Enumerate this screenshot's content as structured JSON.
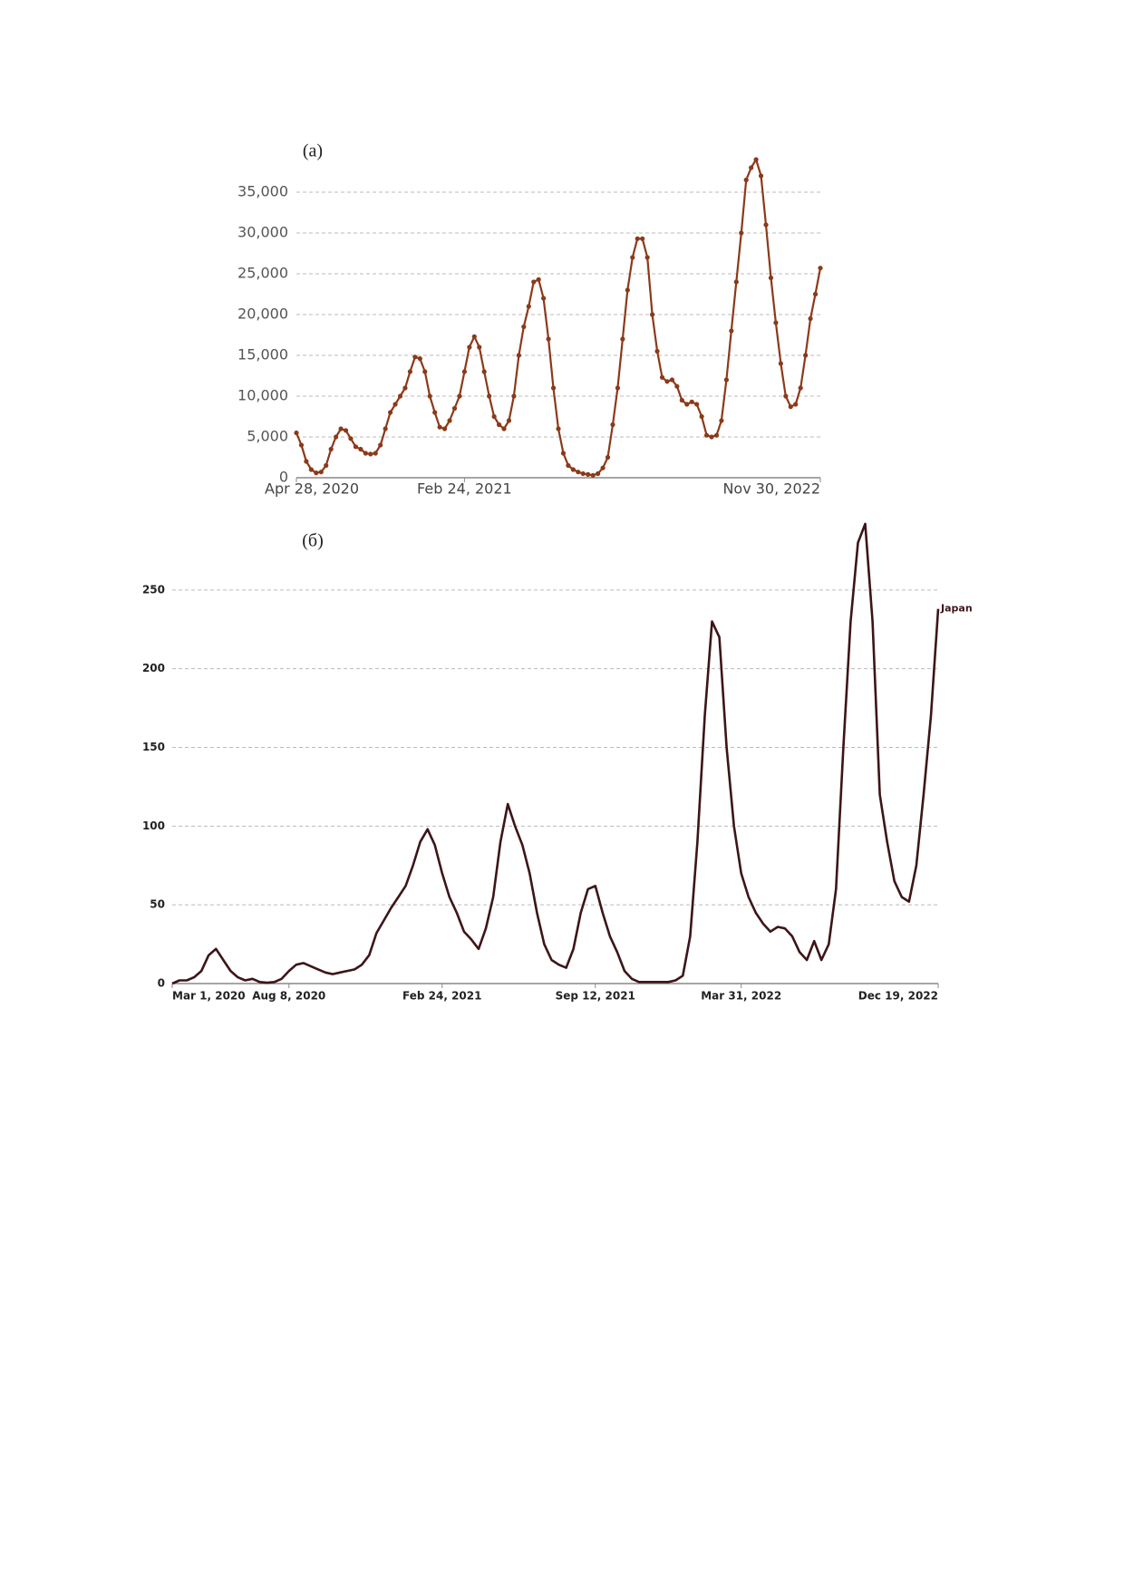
{
  "chart_data": [
    {
      "type": "line",
      "title": "(a)",
      "color": "#8b3a1a",
      "markers": true,
      "grid": true,
      "ylim": [
        0,
        40000
      ],
      "yticks": [
        0,
        {
          "value": 5000,
          "label": "5,000"
        },
        {
          "value": 10000,
          "label": "10,000"
        },
        {
          "value": 15000,
          "label": "15,000"
        },
        {
          "value": 20000,
          "label": "20,000"
        },
        {
          "value": 25000,
          "label": "25,000"
        },
        {
          "value": 30000,
          "label": "30,000"
        },
        {
          "value": 35000,
          "label": "35,000"
        }
      ],
      "categories": [
        "Apr 28, 2020",
        null,
        null,
        null,
        null,
        null,
        null,
        null,
        null,
        null,
        null,
        null,
        null,
        null,
        null,
        null,
        null,
        null,
        null,
        null,
        null,
        null,
        null,
        null,
        null,
        null,
        null,
        null,
        null,
        null,
        null,
        null,
        null,
        null,
        "Feb 24, 2021",
        null,
        null,
        null,
        null,
        null,
        null,
        null,
        null,
        null,
        null,
        null,
        null,
        null,
        null,
        null,
        null,
        null,
        null,
        null,
        null,
        null,
        null,
        null,
        null,
        null,
        null,
        null,
        null,
        null,
        null,
        null,
        null,
        null,
        null,
        null,
        null,
        null,
        null,
        null,
        null,
        null,
        null,
        null,
        null,
        null,
        null,
        null,
        null,
        null,
        null,
        null,
        null,
        null,
        null,
        null,
        null,
        null,
        null,
        null,
        null,
        null,
        null,
        null,
        null,
        null,
        null,
        null,
        null,
        null,
        null,
        null,
        "Nov 30, 2022"
      ],
      "values": [
        5500,
        4000,
        2000,
        1000,
        600,
        700,
        1500,
        3500,
        5000,
        6000,
        5800,
        4800,
        3800,
        3500,
        3000,
        2900,
        3000,
        4000,
        6000,
        8000,
        9000,
        10000,
        11000,
        13000,
        14800,
        14600,
        13000,
        10000,
        8000,
        6200,
        6000,
        7000,
        8500,
        10000,
        13000,
        16000,
        17300,
        16000,
        13000,
        10000,
        7500,
        6500,
        6000,
        7000,
        10000,
        15000,
        18500,
        21000,
        24000,
        24300,
        22000,
        17000,
        11000,
        6000,
        3000,
        1500,
        1000,
        700,
        500,
        400,
        300,
        500,
        1200,
        2500,
        6500,
        11000,
        17000,
        23000,
        27000,
        29300,
        29300,
        27000,
        20000,
        15500,
        12300,
        11800,
        12000,
        11200,
        9500,
        9000,
        9300,
        9000,
        7500,
        5200,
        5000,
        5200,
        7000,
        12000,
        18000,
        24000,
        30000,
        36500,
        38000,
        39000,
        37000,
        31000,
        24500,
        19000,
        14000,
        10000,
        8700,
        9000,
        11000,
        15000,
        19500,
        22500,
        25700
      ]
    },
    {
      "type": "line",
      "title": "(б)",
      "grid": true,
      "markers": false,
      "ylim": [
        0,
        300
      ],
      "yticks": [
        0,
        50,
        100,
        150,
        200,
        250
      ],
      "categories": [
        "Mar 1, 2020",
        null,
        null,
        null,
        null,
        null,
        null,
        null,
        null,
        null,
        null,
        null,
        null,
        null,
        null,
        null,
        "Aug 8, 2020",
        null,
        null,
        null,
        null,
        null,
        null,
        null,
        null,
        null,
        null,
        null,
        null,
        null,
        null,
        null,
        null,
        null,
        null,
        null,
        null,
        "Feb 24, 2021",
        null,
        null,
        null,
        null,
        null,
        null,
        null,
        null,
        null,
        null,
        null,
        null,
        null,
        null,
        null,
        null,
        null,
        null,
        null,
        null,
        "Sep 12, 2021",
        null,
        null,
        null,
        null,
        null,
        null,
        null,
        null,
        null,
        null,
        null,
        null,
        null,
        null,
        null,
        null,
        null,
        null,
        null,
        "Mar 31, 2022",
        null,
        null,
        null,
        null,
        null,
        null,
        null,
        null,
        null,
        null,
        null,
        null,
        null,
        null,
        null,
        null,
        null,
        null,
        null,
        null,
        null,
        null,
        null,
        null,
        null,
        null,
        "Dec 19, 2022"
      ],
      "series": [
        {
          "name": "Japan",
          "color": "#3d1518",
          "values": [
            0,
            2,
            2,
            4,
            8,
            18,
            22,
            15,
            8,
            4,
            2,
            3,
            1,
            0.5,
            1,
            3,
            8,
            12,
            13,
            11,
            9,
            7,
            6,
            7,
            8,
            9,
            12,
            18,
            32,
            40,
            48,
            55,
            62,
            75,
            90,
            98,
            88,
            70,
            55,
            45,
            33,
            28,
            22,
            35,
            55,
            90,
            114,
            100,
            88,
            70,
            45,
            25,
            15,
            12,
            10,
            22,
            45,
            60,
            62,
            45,
            30,
            20,
            8,
            3,
            1,
            1,
            1,
            1,
            1,
            2,
            5,
            30,
            90,
            170,
            230,
            220,
            150,
            100,
            70,
            55,
            45,
            38,
            33,
            36,
            35,
            30,
            20,
            15,
            27,
            15,
            25,
            60,
            150,
            230,
            280,
            292,
            230,
            120,
            90,
            65,
            55,
            52,
            75,
            120,
            170,
            238
          ]
        }
      ]
    }
  ]
}
